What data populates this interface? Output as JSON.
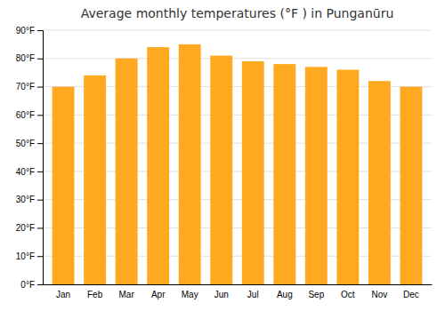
{
  "chart_data": {
    "type": "bar",
    "title": "Average monthly temperatures (°F ) in Punganūru",
    "categories": [
      "Jan",
      "Feb",
      "Mar",
      "Apr",
      "May",
      "Jun",
      "Jul",
      "Aug",
      "Sep",
      "Oct",
      "Nov",
      "Dec"
    ],
    "values": [
      70,
      74,
      80,
      84,
      85,
      81,
      79,
      78,
      77,
      76,
      72,
      70
    ],
    "color": "#FFA920",
    "ylim": [
      0,
      90
    ],
    "yticks": [
      {
        "value": 0,
        "label": "0°F"
      },
      {
        "value": 10,
        "label": "10°F"
      },
      {
        "value": 20,
        "label": "20°F"
      },
      {
        "value": 30,
        "label": "30°F"
      },
      {
        "value": 40,
        "label": "40°F"
      },
      {
        "value": 50,
        "label": "50°F"
      },
      {
        "value": 60,
        "label": "60°F"
      },
      {
        "value": 70,
        "label": "70°F"
      },
      {
        "value": 80,
        "label": "80°F"
      },
      {
        "value": 90,
        "label": "90°F"
      }
    ],
    "grid": true
  }
}
